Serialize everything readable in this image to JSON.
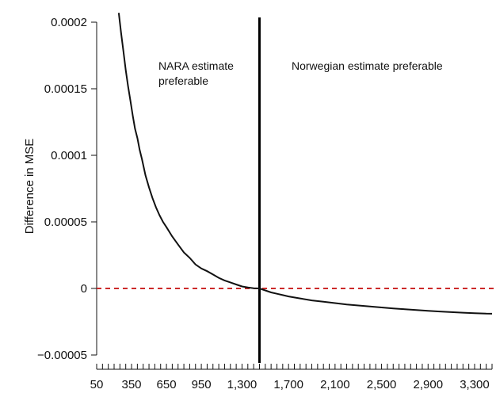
{
  "chart_data": {
    "type": "line",
    "title": "",
    "xlabel": "",
    "ylabel": "Difference in MSE",
    "xlim": [
      50,
      3450
    ],
    "ylim": [
      -5e-05,
      0.0002
    ],
    "grid": false,
    "legend": "none",
    "x_tick_labels": [
      "50",
      "350",
      "650",
      "950",
      "1,300",
      "1,700",
      "2,100",
      "2,500",
      "2,900",
      "3,300"
    ],
    "x_tick_values": [
      50,
      350,
      650,
      950,
      1300,
      1700,
      2100,
      2500,
      2900,
      3300
    ],
    "x_minor_tick_step": 50,
    "y_tick_labels": [
      "0.0002",
      "0.00015",
      "0.0001",
      "0.00005",
      "0",
      "−0.00005"
    ],
    "y_tick_values": [
      0.0002,
      0.00015,
      0.0001,
      5e-05,
      0,
      -5e-05
    ],
    "reference_line": {
      "y": 0,
      "color": "#cc2a2a",
      "style": "dashed"
    },
    "threshold_line": {
      "x": 1450,
      "color": "#000000"
    },
    "annotations": [
      {
        "text_lines": [
          "NARA estimate",
          "preferable"
        ]
      },
      {
        "text_lines": [
          "Norwegian estimate preferable"
        ]
      }
    ],
    "series": [
      {
        "color": "#111111",
        "x": [
          240,
          260,
          280,
          300,
          320,
          340,
          360,
          380,
          400,
          420,
          440,
          470,
          500,
          530,
          560,
          590,
          620,
          650,
          700,
          750,
          800,
          850,
          900,
          950,
          1000,
          1050,
          1100,
          1150,
          1200,
          1250,
          1300,
          1350,
          1400,
          1450,
          1500,
          1550,
          1600,
          1650,
          1700,
          1800,
          1900,
          2000,
          2100,
          2200,
          2300,
          2400,
          2500,
          2600,
          2700,
          2800,
          2900,
          3000,
          3100,
          3200,
          3300,
          3400,
          3450
        ],
        "y": [
          0.000207,
          0.000192,
          0.000178,
          0.000164,
          0.000152,
          0.000141,
          0.00013,
          0.00012,
          0.000113,
          0.000104,
          9.7e-05,
          8.5e-05,
          7.6e-05,
          6.8e-05,
          6.1e-05,
          5.5e-05,
          5e-05,
          4.6e-05,
          3.9e-05,
          3.3e-05,
          2.7e-05,
          2.3e-05,
          1.8e-05,
          1.5e-05,
          1.3e-05,
          1.05e-05,
          8e-06,
          6e-06,
          4.5e-06,
          3e-06,
          1.5e-06,
          8e-07,
          2e-07,
          0.0,
          -1.5e-06,
          -3e-06,
          -4e-06,
          -5e-06,
          -6e-06,
          -7.5e-06,
          -9e-06,
          -1e-05,
          -1.1e-05,
          -1.2e-05,
          -1.28e-05,
          -1.36e-05,
          -1.43e-05,
          -1.5e-05,
          -1.56e-05,
          -1.62e-05,
          -1.68e-05,
          -1.73e-05,
          -1.78e-05,
          -1.82e-05,
          -1.86e-05,
          -1.89e-05,
          -1.9e-05
        ]
      }
    ]
  }
}
